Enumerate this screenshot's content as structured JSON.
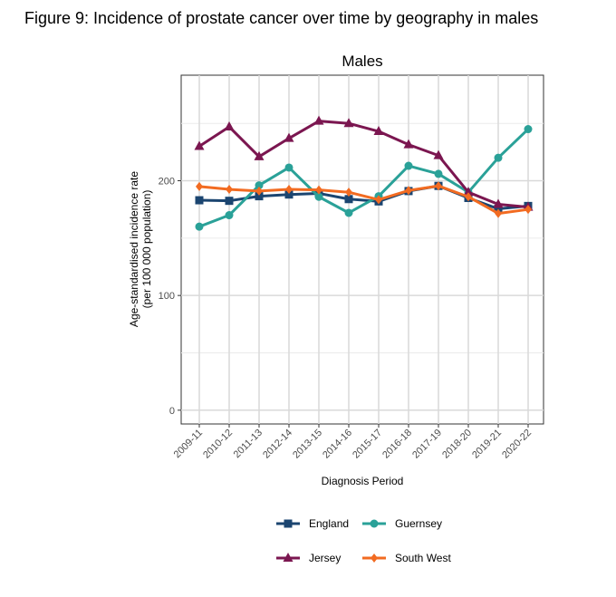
{
  "figure_title": "Figure 9: Incidence of prostate cancer over time by geography in males",
  "chart_data": {
    "type": "line",
    "title": "Males",
    "xlabel": "Diagnosis Period",
    "ylabel": "Age-standardised incidence rate",
    "ylabel2": "(per 100 000 population)",
    "ylim": [
      -12,
      292
    ],
    "yticks": [
      0,
      100,
      200
    ],
    "categories": [
      "2009-11",
      "2010-12",
      "2011-13",
      "2012-14",
      "2013-15",
      "2014-16",
      "2015-17",
      "2016-18",
      "2017-19",
      "2018-20",
      "2019-21",
      "2020-22"
    ],
    "series": [
      {
        "name": "England",
        "color": "#1b4570",
        "marker": "square",
        "values": [
          183,
          182.5,
          186.5,
          188,
          189,
          184,
          182,
          191,
          195.5,
          185,
          175.5,
          178
        ]
      },
      {
        "name": "Guernsey",
        "color": "#2aa198",
        "marker": "circle",
        "values": [
          160,
          170,
          196,
          211.5,
          186,
          172,
          186.5,
          213,
          206,
          190,
          220,
          245
        ]
      },
      {
        "name": "Jersey",
        "color": "#7b1650",
        "marker": "triangle",
        "values": [
          230,
          247,
          221,
          237,
          252,
          250,
          243,
          231.5,
          222,
          190,
          179.5,
          177
        ]
      },
      {
        "name": "South West",
        "color": "#f26b21",
        "marker": "diamond",
        "values": [
          195,
          192.5,
          191,
          192.5,
          192,
          190,
          183.5,
          191.5,
          195.5,
          186,
          171.5,
          175
        ]
      }
    ],
    "legend_position": "bottom",
    "grid": true
  }
}
